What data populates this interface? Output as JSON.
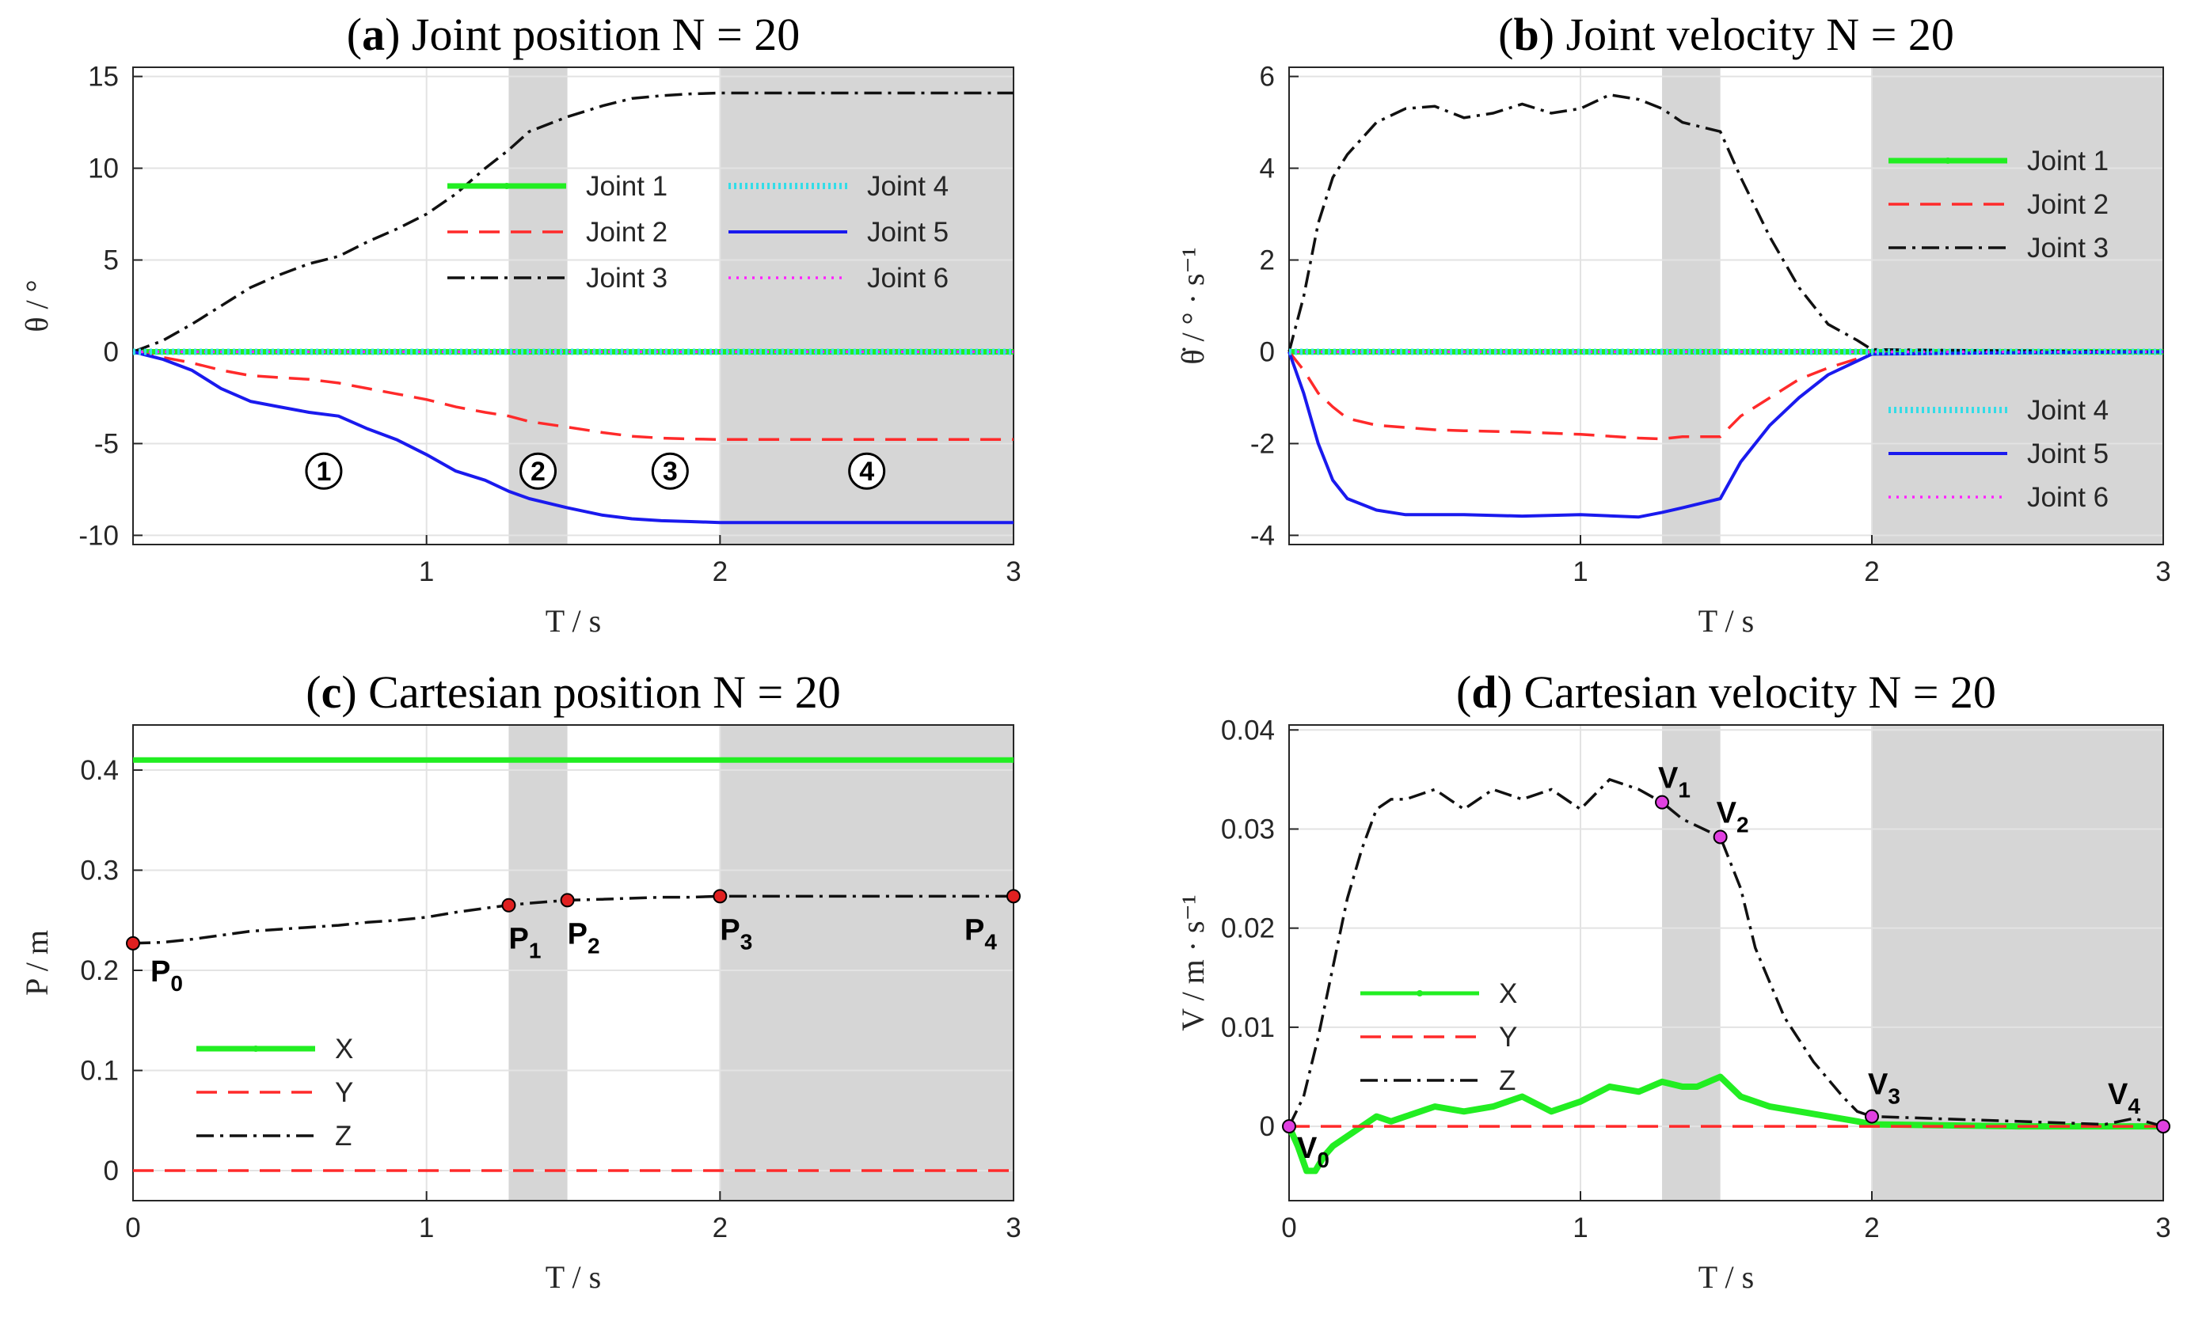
{
  "colors": {
    "joint1": "#22ee22",
    "joint2": "#ff2a2a",
    "joint3": "#111111",
    "joint4": "#33dde8",
    "joint5": "#1a1aee",
    "joint6": "#ff22ff",
    "X": "#22ee22",
    "Y": "#ff2a2a",
    "Z": "#111111",
    "shade": "#d6d6d6",
    "marker_pos": "#e02020",
    "marker_vel": "#e040e0"
  },
  "chart_data": [
    {
      "id": "a",
      "type": "line",
      "title_letter": "a",
      "title_text": " Joint position N = 20",
      "xlabel": "T / s",
      "ylabel": "θ / °",
      "xlim": [
        0,
        3
      ],
      "ylim": [
        -10.5,
        15.5
      ],
      "xticks": [
        1,
        2,
        3
      ],
      "xtick_labels": [
        "1",
        "2",
        "3"
      ],
      "yticks": [
        -10,
        -5,
        0,
        5,
        10,
        15
      ],
      "ytick_labels": [
        "-10",
        "-5",
        "0",
        "5",
        "10",
        "15"
      ],
      "grid": true,
      "shaded_x": [
        [
          1.28,
          1.48
        ],
        [
          2.0,
          3.0
        ]
      ],
      "phase_labels": [
        {
          "x": 0.65,
          "y": -6.5,
          "text": "1"
        },
        {
          "x": 1.38,
          "y": -6.5,
          "text": "2"
        },
        {
          "x": 1.83,
          "y": -6.5,
          "text": "3"
        },
        {
          "x": 2.5,
          "y": -6.5,
          "text": "4"
        }
      ],
      "series": [
        {
          "name": "Joint 1",
          "key": "joint1",
          "style": "solid-marker",
          "x": [
            0,
            3
          ],
          "y": [
            0,
            0
          ]
        },
        {
          "name": "Joint 2",
          "key": "joint2",
          "style": "dashed",
          "x": [
            0,
            0.1,
            0.2,
            0.3,
            0.4,
            0.5,
            0.6,
            0.7,
            0.8,
            0.9,
            1.0,
            1.1,
            1.2,
            1.28,
            1.35,
            1.48,
            1.6,
            1.7,
            1.8,
            1.9,
            2.0,
            2.5,
            3.0
          ],
          "y": [
            0,
            -0.3,
            -0.6,
            -1.0,
            -1.3,
            -1.4,
            -1.5,
            -1.7,
            -2.0,
            -2.3,
            -2.6,
            -3.0,
            -3.3,
            -3.5,
            -3.8,
            -4.1,
            -4.4,
            -4.6,
            -4.7,
            -4.75,
            -4.78,
            -4.78,
            -4.78
          ]
        },
        {
          "name": "Joint 3",
          "key": "joint3",
          "style": "dashdot",
          "x": [
            0,
            0.1,
            0.2,
            0.3,
            0.4,
            0.5,
            0.6,
            0.7,
            0.8,
            0.9,
            1.0,
            1.1,
            1.2,
            1.28,
            1.35,
            1.48,
            1.6,
            1.7,
            1.8,
            1.9,
            2.0,
            2.5,
            3.0
          ],
          "y": [
            0,
            0.6,
            1.5,
            2.5,
            3.5,
            4.2,
            4.8,
            5.2,
            6.0,
            6.7,
            7.5,
            8.6,
            10.0,
            11.0,
            12.0,
            12.8,
            13.4,
            13.8,
            13.95,
            14.05,
            14.1,
            14.1,
            14.1
          ]
        },
        {
          "name": "Joint 4",
          "key": "joint4",
          "style": "dots-thick",
          "x": [
            0,
            3
          ],
          "y": [
            0,
            0
          ]
        },
        {
          "name": "Joint 5",
          "key": "joint5",
          "style": "solid",
          "x": [
            0,
            0.1,
            0.2,
            0.3,
            0.4,
            0.5,
            0.6,
            0.7,
            0.8,
            0.9,
            1.0,
            1.1,
            1.2,
            1.28,
            1.35,
            1.48,
            1.6,
            1.7,
            1.8,
            1.9,
            2.0,
            2.5,
            3.0
          ],
          "y": [
            0,
            -0.4,
            -1.0,
            -2.0,
            -2.7,
            -3.0,
            -3.3,
            -3.5,
            -4.2,
            -4.8,
            -5.6,
            -6.5,
            -7.0,
            -7.6,
            -8.0,
            -8.5,
            -8.9,
            -9.1,
            -9.2,
            -9.25,
            -9.3,
            -9.3,
            -9.3
          ]
        },
        {
          "name": "Joint 6",
          "key": "joint6",
          "style": "dotted",
          "x": [
            0,
            3
          ],
          "y": [
            0,
            0
          ]
        }
      ],
      "legend_columns": [
        [
          "Joint 1",
          "Joint 2",
          "Joint 3"
        ],
        [
          "Joint 4",
          "Joint 5",
          "Joint 6"
        ]
      ]
    },
    {
      "id": "b",
      "type": "line",
      "title_letter": "b",
      "title_text": " Joint velocity N = 20",
      "xlabel": "T / s",
      "ylabel": "θ̇ / ° · s⁻¹",
      "xlim": [
        0,
        3
      ],
      "ylim": [
        -4.2,
        6.2
      ],
      "xticks": [
        1,
        2,
        3
      ],
      "xtick_labels": [
        "1",
        "2",
        "3"
      ],
      "yticks": [
        -4,
        -2,
        0,
        2,
        4,
        6
      ],
      "ytick_labels": [
        "-4",
        "-2",
        "0",
        "2",
        "4",
        "6"
      ],
      "grid": true,
      "shaded_x": [
        [
          1.28,
          1.48
        ],
        [
          2.0,
          3.0
        ]
      ],
      "series": [
        {
          "name": "Joint 1",
          "key": "joint1",
          "style": "solid-marker",
          "x": [
            0,
            3
          ],
          "y": [
            0,
            0
          ]
        },
        {
          "name": "Joint 2",
          "key": "joint2",
          "style": "dashed",
          "x": [
            0,
            0.05,
            0.1,
            0.15,
            0.2,
            0.3,
            0.4,
            0.5,
            0.6,
            0.8,
            1.0,
            1.2,
            1.28,
            1.35,
            1.48,
            1.55,
            1.65,
            1.75,
            1.85,
            1.95,
            2.0,
            2.5,
            3.0
          ],
          "y": [
            0,
            -0.4,
            -0.9,
            -1.2,
            -1.45,
            -1.6,
            -1.65,
            -1.7,
            -1.72,
            -1.75,
            -1.8,
            -1.88,
            -1.9,
            -1.85,
            -1.85,
            -1.4,
            -1.0,
            -0.6,
            -0.35,
            -0.15,
            -0.05,
            -0.02,
            0
          ]
        },
        {
          "name": "Joint 3",
          "key": "joint3",
          "style": "dashdot",
          "x": [
            0,
            0.05,
            0.1,
            0.15,
            0.2,
            0.3,
            0.4,
            0.5,
            0.6,
            0.7,
            0.8,
            0.9,
            1.0,
            1.1,
            1.2,
            1.28,
            1.35,
            1.48,
            1.55,
            1.65,
            1.75,
            1.85,
            1.95,
            2.0,
            2.5,
            3.0
          ],
          "y": [
            0,
            1.2,
            2.8,
            3.8,
            4.3,
            5.0,
            5.3,
            5.35,
            5.1,
            5.2,
            5.4,
            5.2,
            5.3,
            5.6,
            5.5,
            5.3,
            5.0,
            4.8,
            3.8,
            2.5,
            1.4,
            0.6,
            0.25,
            0.05,
            0.02,
            0
          ]
        },
        {
          "name": "Joint 4",
          "key": "joint4",
          "style": "dots-thick",
          "x": [
            0,
            3
          ],
          "y": [
            0,
            0
          ]
        },
        {
          "name": "Joint 5",
          "key": "joint5",
          "style": "solid",
          "x": [
            0,
            0.05,
            0.1,
            0.15,
            0.2,
            0.3,
            0.4,
            0.5,
            0.6,
            0.8,
            1.0,
            1.2,
            1.28,
            1.35,
            1.48,
            1.55,
            1.65,
            1.75,
            1.85,
            1.95,
            2.0,
            2.5,
            3.0
          ],
          "y": [
            0,
            -0.9,
            -2.0,
            -2.8,
            -3.2,
            -3.45,
            -3.55,
            -3.55,
            -3.55,
            -3.58,
            -3.55,
            -3.6,
            -3.5,
            -3.4,
            -3.2,
            -2.4,
            -1.6,
            -1.0,
            -0.5,
            -0.2,
            -0.05,
            -0.02,
            0
          ]
        },
        {
          "name": "Joint 6",
          "key": "joint6",
          "style": "dotted",
          "x": [
            0,
            3
          ],
          "y": [
            0,
            0
          ]
        }
      ],
      "legend_groups": [
        [
          "Joint 1",
          "Joint 2",
          "Joint 3"
        ],
        [
          "Joint 4",
          "Joint 5",
          "Joint 6"
        ]
      ]
    },
    {
      "id": "c",
      "type": "line",
      "title_letter": "c",
      "title_text": " Cartesian position N = 20",
      "xlabel": "T / s",
      "ylabel": "P / m",
      "xlim": [
        0,
        3
      ],
      "ylim": [
        -0.03,
        0.445
      ],
      "xticks": [
        0,
        1,
        2,
        3
      ],
      "xtick_labels": [
        "0",
        "1",
        "2",
        "3"
      ],
      "yticks": [
        0,
        0.1,
        0.2,
        0.3,
        0.4
      ],
      "ytick_labels": [
        "0",
        "0.1",
        "0.2",
        "0.3",
        "0.4"
      ],
      "grid": true,
      "shaded_x": [
        [
          1.28,
          1.48
        ],
        [
          2.0,
          3.0
        ]
      ],
      "series": [
        {
          "name": "X",
          "key": "X",
          "style": "solid-marker",
          "x": [
            0,
            3
          ],
          "y": [
            0.41,
            0.41
          ]
        },
        {
          "name": "Y",
          "key": "Y",
          "style": "dashed",
          "x": [
            0,
            3
          ],
          "y": [
            0,
            0
          ]
        },
        {
          "name": "Z",
          "key": "Z",
          "style": "dashdot",
          "x": [
            0,
            0.1,
            0.2,
            0.3,
            0.4,
            0.5,
            0.6,
            0.7,
            0.8,
            0.9,
            1.0,
            1.1,
            1.2,
            1.28,
            1.35,
            1.48,
            1.6,
            1.7,
            1.8,
            1.9,
            2.0,
            2.5,
            3.0
          ],
          "y": [
            0.227,
            0.228,
            0.231,
            0.235,
            0.239,
            0.241,
            0.243,
            0.245,
            0.248,
            0.25,
            0.253,
            0.258,
            0.262,
            0.265,
            0.267,
            0.27,
            0.271,
            0.272,
            0.273,
            0.273,
            0.274,
            0.274,
            0.274
          ]
        }
      ],
      "points": [
        {
          "label": "P",
          "sub": "0",
          "x": 0.0,
          "y": 0.227
        },
        {
          "label": "P",
          "sub": "1",
          "x": 1.28,
          "y": 0.265
        },
        {
          "label": "P",
          "sub": "2",
          "x": 1.48,
          "y": 0.27
        },
        {
          "label": "P",
          "sub": "3",
          "x": 2.0,
          "y": 0.274
        },
        {
          "label": "P",
          "sub": "4",
          "x": 3.0,
          "y": 0.274
        }
      ],
      "legend": [
        "X",
        "Y",
        "Z"
      ]
    },
    {
      "id": "d",
      "type": "line",
      "title_letter": "d",
      "title_text": " Cartesian velocity N = 20",
      "xlabel": "T / s",
      "ylabel": "V / m · s⁻¹",
      "xlim": [
        0,
        3
      ],
      "ylim": [
        -0.0075,
        0.0405
      ],
      "xticks": [
        0,
        1,
        2,
        3
      ],
      "xtick_labels": [
        "0",
        "1",
        "2",
        "3"
      ],
      "yticks": [
        0,
        0.01,
        0.02,
        0.03,
        0.04
      ],
      "ytick_labels": [
        "0",
        "0.01",
        "0.02",
        "0.03",
        "0.04"
      ],
      "grid": true,
      "shaded_x": [
        [
          1.28,
          1.48
        ],
        [
          2.0,
          3.0
        ]
      ],
      "series": [
        {
          "name": "X",
          "key": "X",
          "style": "solid-thick",
          "x": [
            0,
            0.03,
            0.06,
            0.09,
            0.12,
            0.15,
            0.2,
            0.25,
            0.3,
            0.35,
            0.4,
            0.5,
            0.6,
            0.7,
            0.8,
            0.9,
            1.0,
            1.1,
            1.2,
            1.28,
            1.35,
            1.4,
            1.48,
            1.55,
            1.65,
            1.75,
            1.85,
            1.95,
            2.0,
            2.5,
            3.0
          ],
          "y": [
            0,
            -0.002,
            -0.0045,
            -0.0045,
            -0.003,
            -0.002,
            -0.001,
            0.0,
            0.001,
            0.0005,
            0.001,
            0.002,
            0.0015,
            0.002,
            0.003,
            0.0015,
            0.0025,
            0.004,
            0.0035,
            0.0045,
            0.004,
            0.004,
            0.005,
            0.003,
            0.002,
            0.0015,
            0.001,
            0.0005,
            0.0002,
            0.0,
            0.0
          ]
        },
        {
          "name": "Y",
          "key": "Y",
          "style": "dashed",
          "x": [
            0,
            3
          ],
          "y": [
            0,
            0
          ]
        },
        {
          "name": "Z",
          "key": "Z",
          "style": "dashdot",
          "x": [
            0,
            0.05,
            0.1,
            0.15,
            0.2,
            0.25,
            0.3,
            0.35,
            0.4,
            0.5,
            0.6,
            0.7,
            0.8,
            0.9,
            1.0,
            1.1,
            1.2,
            1.28,
            1.35,
            1.48,
            1.55,
            1.6,
            1.7,
            1.8,
            1.9,
            1.95,
            2.0,
            2.5,
            2.8,
            2.9,
            3.0
          ],
          "y": [
            0,
            0.003,
            0.009,
            0.016,
            0.023,
            0.028,
            0.032,
            0.033,
            0.033,
            0.034,
            0.032,
            0.034,
            0.033,
            0.034,
            0.032,
            0.035,
            0.034,
            0.0327,
            0.031,
            0.0292,
            0.024,
            0.018,
            0.011,
            0.0065,
            0.003,
            0.0015,
            0.001,
            0.0005,
            0.0002,
            0.0008,
            0.0
          ]
        }
      ],
      "points": [
        {
          "label": "V",
          "sub": "0",
          "x": 0.0,
          "y": 0.0
        },
        {
          "label": "V",
          "sub": "1",
          "x": 1.28,
          "y": 0.0327
        },
        {
          "label": "V",
          "sub": "2",
          "x": 1.48,
          "y": 0.0292
        },
        {
          "label": "V",
          "sub": "3",
          "x": 2.0,
          "y": 0.001
        },
        {
          "label": "V",
          "sub": "4",
          "x": 3.0,
          "y": 0.0
        }
      ],
      "legend": [
        "X",
        "Y",
        "Z"
      ]
    }
  ]
}
